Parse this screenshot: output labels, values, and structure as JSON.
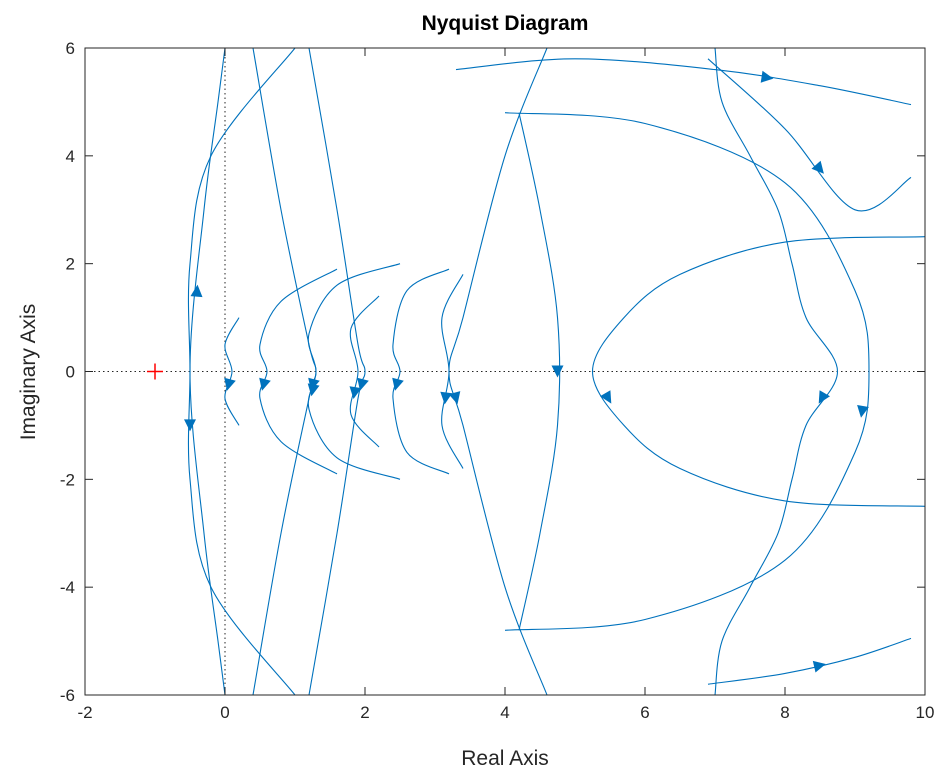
{
  "chart_data": {
    "type": "line",
    "title": "Nyquist Diagram",
    "xlabel": "Real Axis",
    "ylabel": "Imaginary Axis",
    "xlim": [
      -2,
      10
    ],
    "ylim": [
      -6,
      6
    ],
    "xticks": [
      -2,
      0,
      2,
      4,
      6,
      8,
      10
    ],
    "yticks": [
      -6,
      -4,
      -2,
      0,
      2,
      4,
      6
    ],
    "grid": false,
    "line_color": "#0072BD",
    "critical_point": {
      "x": -1,
      "y": 0,
      "marker": "+",
      "color": "#FF0000"
    },
    "reference_lines": {
      "style": "dotted",
      "x": 0,
      "y": 0,
      "color": "#262626"
    },
    "series": [
      {
        "points": [
          [
            0,
            -6
          ],
          [
            -0.1,
            -5
          ],
          [
            -0.3,
            -3
          ],
          [
            -0.5,
            0
          ],
          [
            -0.3,
            3
          ],
          [
            -0.1,
            5
          ],
          [
            0,
            6
          ]
        ]
      },
      {
        "points": [
          [
            7,
            6
          ],
          [
            7.1,
            5
          ],
          [
            7.5,
            4
          ],
          [
            7.9,
            3
          ],
          [
            8.1,
            2
          ],
          [
            8.3,
            1
          ],
          [
            8.75,
            0
          ],
          [
            8.3,
            -1
          ],
          [
            8.1,
            -2
          ],
          [
            7.9,
            -3
          ],
          [
            7.5,
            -4
          ],
          [
            7.1,
            -5
          ],
          [
            7,
            -6
          ]
        ]
      },
      {
        "points": [
          [
            10,
            2.5
          ],
          [
            8,
            2.4
          ],
          [
            6.5,
            1.8
          ],
          [
            5.7,
            1
          ],
          [
            5.25,
            0
          ],
          [
            5.7,
            -1
          ],
          [
            6.5,
            -1.8
          ],
          [
            8,
            -2.4
          ],
          [
            10,
            -2.5
          ]
        ]
      },
      {
        "points": [
          [
            1,
            6
          ],
          [
            -0.2,
            4
          ],
          [
            -0.5,
            2
          ],
          [
            -0.5,
            0
          ],
          [
            -0.5,
            -2
          ],
          [
            -0.2,
            -4
          ],
          [
            1,
            -6
          ]
        ]
      },
      {
        "points": [
          [
            4,
            4.8
          ],
          [
            6,
            4.6
          ],
          [
            8,
            3.5
          ],
          [
            9,
            1.5
          ],
          [
            9.2,
            0
          ],
          [
            9,
            -1.5
          ],
          [
            8,
            -3.5
          ],
          [
            6,
            -4.6
          ],
          [
            4,
            -4.8
          ]
        ]
      },
      {
        "points": [
          [
            3.3,
            5.6
          ],
          [
            5,
            5.8
          ],
          [
            7,
            5.6
          ],
          [
            8.5,
            5.3
          ],
          [
            9.8,
            4.95
          ]
        ]
      },
      {
        "points": [
          [
            4.2,
            4.8
          ],
          [
            4.5,
            3
          ],
          [
            4.75,
            1
          ],
          [
            4.75,
            -1
          ],
          [
            4.5,
            -3
          ],
          [
            4.2,
            -4.8
          ]
        ]
      },
      {
        "points": [
          [
            6.9,
            -5.8
          ],
          [
            8,
            -5.6
          ],
          [
            9,
            -5.3
          ],
          [
            9.8,
            -4.95
          ]
        ]
      },
      {
        "points": [
          [
            6.9,
            5.8
          ],
          [
            8,
            4.5
          ],
          [
            9,
            3
          ],
          [
            9.8,
            3.6
          ]
        ]
      },
      {
        "points": [
          [
            3.2,
            1.9
          ],
          [
            2.6,
            1.5
          ],
          [
            2.4,
            0.5
          ],
          [
            2.5,
            0
          ],
          [
            2.4,
            -0.5
          ],
          [
            2.6,
            -1.5
          ],
          [
            3.2,
            -1.9
          ]
        ]
      },
      {
        "points": [
          [
            0.2,
            1
          ],
          [
            0,
            0.5
          ],
          [
            0.1,
            0
          ],
          [
            0,
            -0.5
          ],
          [
            0.2,
            -1
          ]
        ]
      },
      {
        "points": [
          [
            1.6,
            1.9
          ],
          [
            0.8,
            1.3
          ],
          [
            0.5,
            0.5
          ],
          [
            0.6,
            0
          ],
          [
            0.5,
            -0.5
          ],
          [
            0.8,
            -1.3
          ],
          [
            1.6,
            -1.9
          ]
        ]
      },
      {
        "points": [
          [
            2.5,
            2
          ],
          [
            1.6,
            1.6
          ],
          [
            1.2,
            0.7
          ],
          [
            1.3,
            0
          ],
          [
            1.2,
            -0.7
          ],
          [
            1.6,
            -1.6
          ],
          [
            2.5,
            -2
          ]
        ]
      },
      {
        "points": [
          [
            3.4,
            1.8
          ],
          [
            3.1,
            1
          ],
          [
            3.2,
            0
          ],
          [
            3.1,
            -1
          ],
          [
            3.4,
            -1.8
          ]
        ]
      },
      {
        "points": [
          [
            2.2,
            1.4
          ],
          [
            1.8,
            0.8
          ],
          [
            1.9,
            0
          ],
          [
            1.8,
            -0.8
          ],
          [
            2.2,
            -1.4
          ]
        ]
      },
      {
        "points": [
          [
            0.4,
            6
          ],
          [
            0.8,
            3
          ],
          [
            1.2,
            0.5
          ],
          [
            1.3,
            0
          ],
          [
            1.2,
            -0.5
          ],
          [
            0.8,
            -3
          ],
          [
            0.4,
            -6
          ]
        ]
      },
      {
        "points": [
          [
            1.2,
            6
          ],
          [
            1.6,
            3
          ],
          [
            1.9,
            0.5
          ],
          [
            2,
            0
          ],
          [
            1.9,
            -0.5
          ],
          [
            1.6,
            -3
          ],
          [
            1.2,
            -6
          ]
        ]
      },
      {
        "points": [
          [
            4.6,
            6
          ],
          [
            4,
            4
          ],
          [
            3.4,
            1
          ],
          [
            3.2,
            0
          ],
          [
            3.4,
            -1
          ],
          [
            4,
            -4
          ],
          [
            4.6,
            -6
          ]
        ]
      }
    ]
  }
}
